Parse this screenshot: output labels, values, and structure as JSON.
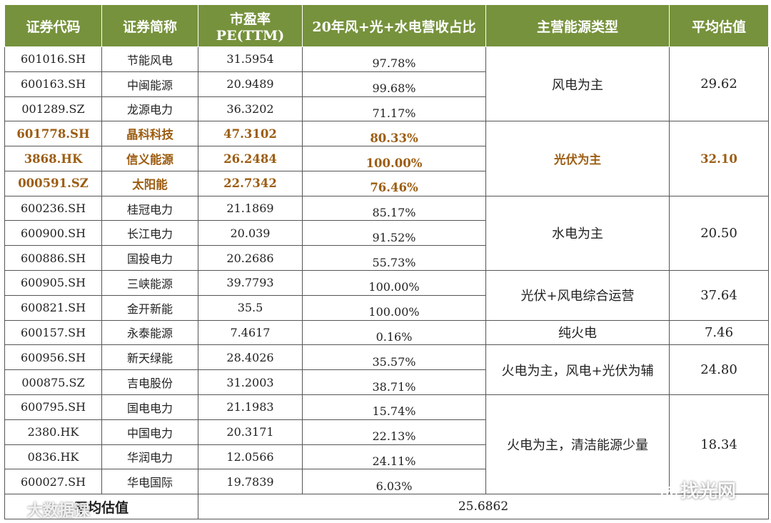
{
  "headers": {
    "code": "证券代码",
    "name": "证券简称",
    "pe": "市盈率PE(TTM)",
    "ratio": "20年风+光+水电营收占比",
    "type": "主营能源类型",
    "avg": "平均估值"
  },
  "rows": [
    {
      "code": "601016.SH",
      "name": "节能风电",
      "pe": "31.5954",
      "ratio": "97.78%"
    },
    {
      "code": "600163.SH",
      "name": "中闽能源",
      "pe": "20.9489",
      "ratio": "99.68%"
    },
    {
      "code": "001289.SZ",
      "name": "龙源电力",
      "pe": "36.3202",
      "ratio": "71.17%"
    },
    {
      "code": "601778.SH",
      "name": "晶科科技",
      "pe": "47.3102",
      "ratio": "80.33%"
    },
    {
      "code": "3868.HK",
      "name": "信义能源",
      "pe": "26.2484",
      "ratio": "100.00%"
    },
    {
      "code": "000591.SZ",
      "name": "太阳能",
      "pe": "22.7342",
      "ratio": "76.46%"
    },
    {
      "code": "600236.SH",
      "name": "桂冠电力",
      "pe": "21.1869",
      "ratio": "85.17%"
    },
    {
      "code": "600900.SH",
      "name": "长江电力",
      "pe": "20.039",
      "ratio": "91.52%"
    },
    {
      "code": "600886.SH",
      "name": "国投电力",
      "pe": "20.2686",
      "ratio": "55.73%"
    },
    {
      "code": "600905.SH",
      "name": "三峡能源",
      "pe": "39.7793",
      "ratio": "100.00%"
    },
    {
      "code": "600821.SH",
      "name": "金开新能",
      "pe": "35.5",
      "ratio": "100.00%"
    },
    {
      "code": "600157.SH",
      "name": "永泰能源",
      "pe": "7.4617",
      "ratio": "0.16%"
    },
    {
      "code": "600956.SH",
      "name": "新天绿能",
      "pe": "28.4026",
      "ratio": "35.57%"
    },
    {
      "code": "000875.SZ",
      "name": "吉电股份",
      "pe": "31.2003",
      "ratio": "38.71%"
    },
    {
      "code": "600795.SH",
      "name": "国电电力",
      "pe": "21.1983",
      "ratio": "15.74%"
    },
    {
      "code": "2380.HK",
      "name": "中国电力",
      "pe": "20.3171",
      "ratio": "22.13%"
    },
    {
      "code": "0836.HK",
      "name": "华润电力",
      "pe": "12.0566",
      "ratio": "24.11%"
    },
    {
      "code": "600027.SH",
      "name": "华电国际",
      "pe": "19.7839",
      "ratio": "6.03%"
    }
  ],
  "groups": [
    {
      "type": "风电为主",
      "avg": "29.62"
    },
    {
      "type": "光伏为主",
      "avg": "32.10"
    },
    {
      "type": "水电为主",
      "avg": "20.50"
    },
    {
      "type": "光伏+风电综合运营",
      "avg": "37.64"
    },
    {
      "type": "纯火电",
      "avg": "7.46"
    },
    {
      "type": "火电为主，风电+光伏为辅",
      "avg": "24.80"
    },
    {
      "type": "火电为主，清洁能源少量",
      "avg": "18.34"
    }
  ],
  "footer": {
    "label": "平均估值",
    "value": "25.6862"
  },
  "watermarks": {
    "left": "大数据课",
    "right": "找光网"
  },
  "colors": {
    "header_bg": "#76923c",
    "highlight_text": "#9c5d12",
    "border": "#555555"
  }
}
